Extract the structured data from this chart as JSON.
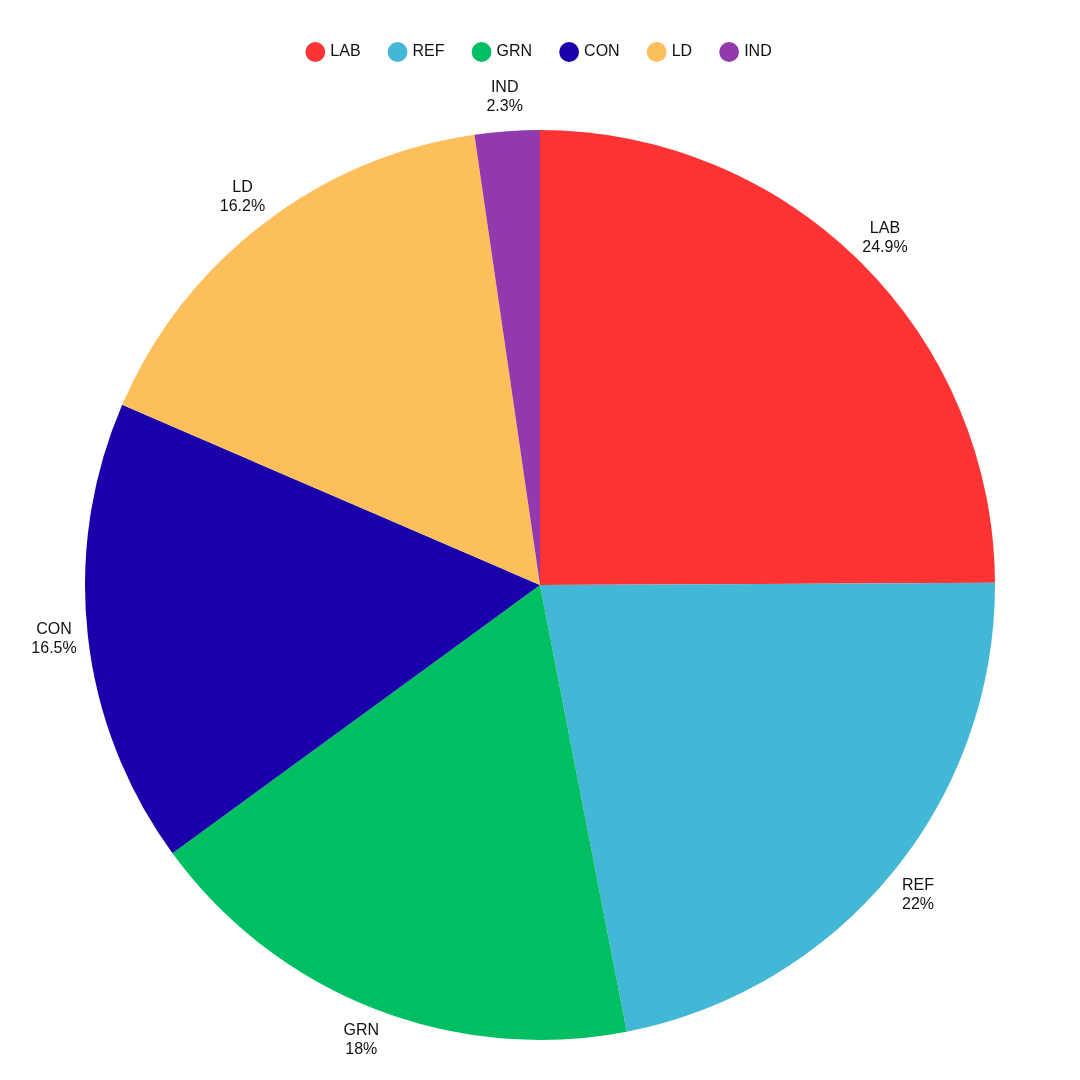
{
  "chart_data": {
    "type": "pie",
    "categories": [
      "LAB",
      "REF",
      "GRN",
      "CON",
      "LD",
      "IND"
    ],
    "values": [
      24.9,
      22,
      18,
      16.5,
      16.2,
      2.3
    ],
    "value_labels": [
      "24.9%",
      "22%",
      "18%",
      "16.5%",
      "16.2%",
      "2.3%"
    ],
    "colors": [
      "#ff3333",
      "#43b7d6",
      "#00bf63",
      "#1a00aa",
      "#fdbe5c",
      "#923aad"
    ],
    "legend": "top"
  }
}
